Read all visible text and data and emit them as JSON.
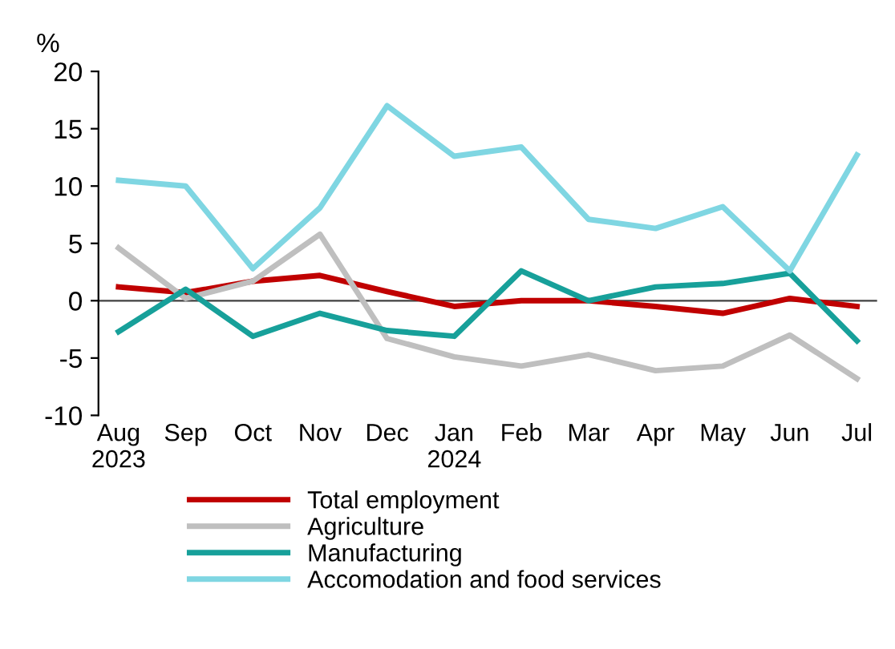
{
  "chart_data": {
    "type": "line",
    "ylabel": "%",
    "categories": [
      "Aug\n2023",
      "Sep",
      "Oct",
      "Nov",
      "Dec",
      "Jan\n2024",
      "Feb",
      "Mar",
      "Apr",
      "May",
      "Jun",
      "Jul"
    ],
    "series": [
      {
        "name": "Total employment",
        "color": "#c00000",
        "values": [
          1.2,
          0.7,
          1.7,
          2.2,
          0.8,
          -0.5,
          0,
          0,
          -0.5,
          -1.1,
          0.2,
          -0.5
        ]
      },
      {
        "name": "Agriculture",
        "color": "#bfbfbf",
        "values": [
          4.6,
          0.2,
          1.7,
          5.8,
          -3.3,
          -4.9,
          -5.7,
          -4.7,
          -6.1,
          -5.7,
          -3,
          -6.8
        ]
      },
      {
        "name": "Manufacturing",
        "color": "#17a09a",
        "values": [
          -2.7,
          1,
          -3.1,
          -1.1,
          -2.6,
          -3.1,
          2.6,
          0,
          1.2,
          1.5,
          2.4,
          -3.5
        ]
      },
      {
        "name": "Accomodation and food services",
        "color": "#7fd6e2",
        "values": [
          10.5,
          10,
          2.8,
          8.1,
          17,
          12.6,
          13.4,
          7.1,
          6.3,
          8.2,
          2.6,
          12.7
        ]
      }
    ],
    "ylim": [
      -10,
      20
    ],
    "yticks": [
      -10,
      -5,
      0,
      5,
      10,
      15,
      20
    ],
    "grid": false,
    "ref_lines": [
      {
        "axis": "y",
        "value": 0,
        "color": "#404040"
      }
    ],
    "legend": "bottom"
  }
}
